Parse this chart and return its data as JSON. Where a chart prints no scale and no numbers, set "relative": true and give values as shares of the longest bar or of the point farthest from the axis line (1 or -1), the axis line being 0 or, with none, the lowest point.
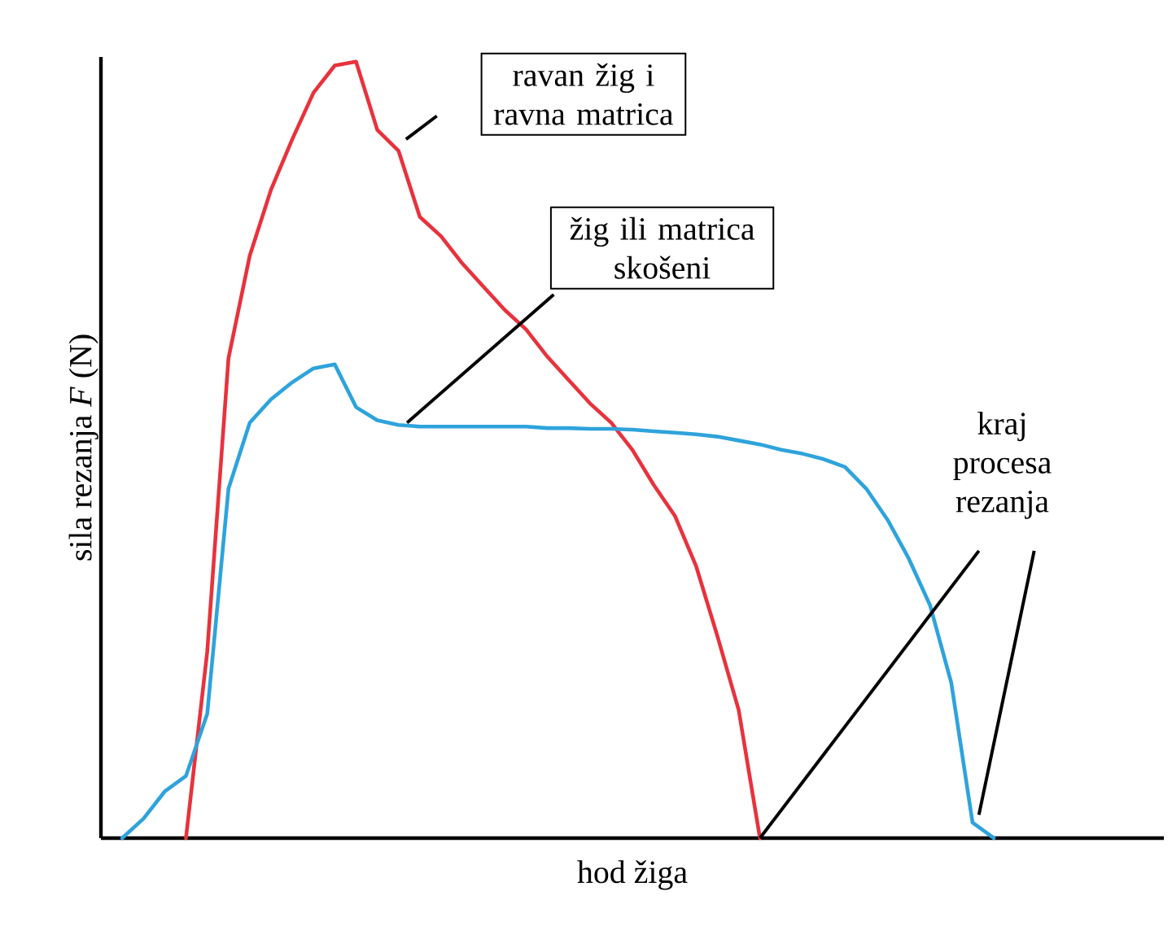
{
  "chart_data": {
    "type": "line",
    "relative": true,
    "xlabel": "hod žiga",
    "ylabel": "sila rezanja *F* (N)",
    "categories": [
      null,
      null,
      null,
      null,
      null,
      null,
      null,
      null,
      null,
      null,
      null,
      null,
      null,
      null,
      null,
      null,
      null,
      null,
      null,
      null,
      null,
      null,
      null,
      null,
      null,
      null,
      null,
      null,
      null,
      null,
      null,
      null,
      null,
      null,
      null,
      null,
      null,
      null,
      null,
      null,
      null,
      null,
      null,
      null,
      null,
      null,
      null,
      null,
      null,
      null
    ],
    "series": [
      {
        "color": "#e8323c",
        "values": [
          null,
          null,
          null,
          null,
          0,
          0.24,
          0.618,
          0.75,
          0.835,
          0.9,
          0.96,
          0.995,
          1,
          0.912,
          0.885,
          0.8,
          0.775,
          0.74,
          0.71,
          0.68,
          0.655,
          0.62,
          0.59,
          0.56,
          0.535,
          0.5,
          0.455,
          0.415,
          0.35,
          0.26,
          0.165,
          0,
          null,
          null,
          null,
          null,
          null,
          null,
          null,
          null,
          null,
          null,
          null,
          null,
          null,
          null,
          null,
          null,
          null,
          null
        ]
      },
      {
        "color": "#2ea3dc",
        "values": [
          null,
          0,
          0.025,
          0.06,
          0.08,
          0.16,
          0.45,
          0.535,
          0.565,
          0.587,
          0.605,
          0.61,
          0.555,
          0.538,
          0.532,
          0.53,
          0.53,
          0.53,
          0.53,
          0.53,
          0.53,
          0.528,
          0.528,
          0.527,
          0.527,
          0.526,
          0.524,
          0.522,
          0.52,
          0.517,
          0.512,
          0.507,
          0.5,
          0.495,
          0.488,
          0.478,
          0.45,
          0.41,
          0.36,
          0.3,
          0.2,
          0.02,
          0,
          null,
          null,
          null,
          null,
          null,
          null,
          null
        ]
      }
    ],
    "annotations": [
      "ravan žig i ravna matrica",
      "žig ili matrica skošeni",
      "kraj procesa rezanja"
    ]
  }
}
